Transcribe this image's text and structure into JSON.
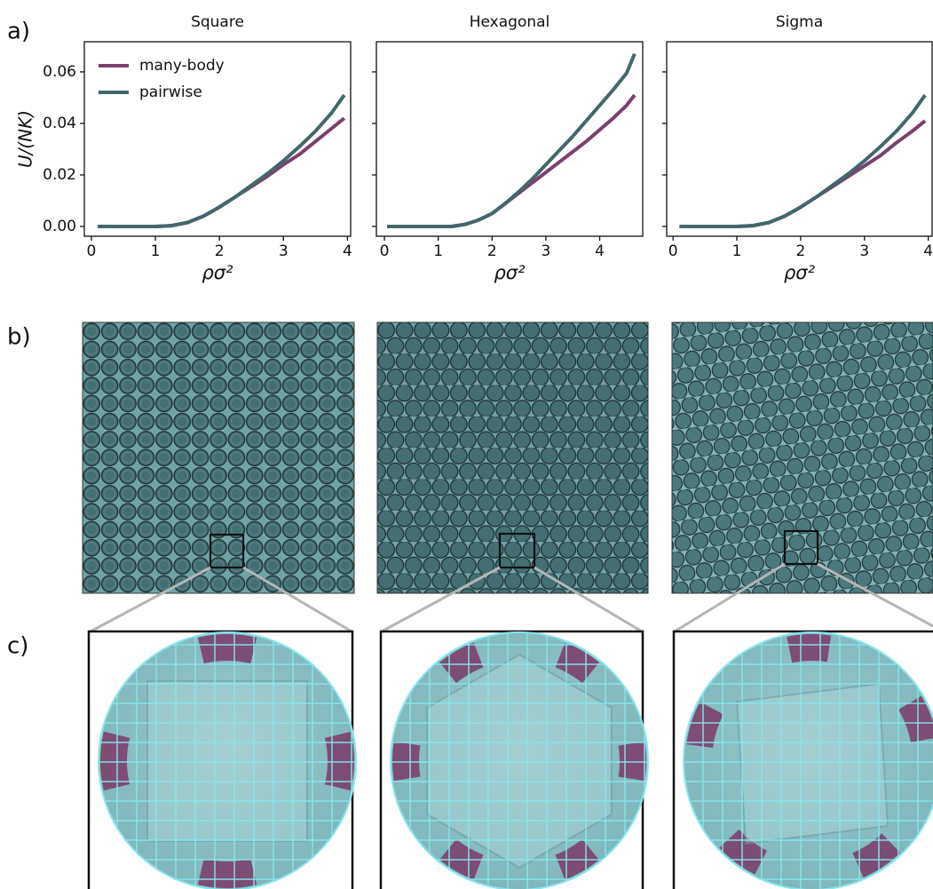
{
  "panel_labels": [
    "a)",
    "b)",
    "c)"
  ],
  "chart_data": [
    {
      "type": "line",
      "title": "Square",
      "x_label": "ρσ²",
      "y_label": "U/(NK)",
      "x": [
        0.1,
        0.5,
        1.0,
        1.25,
        1.5,
        1.75,
        2.0,
        2.25,
        2.5,
        2.75,
        3.0,
        3.25,
        3.5,
        3.75,
        3.95
      ],
      "series": [
        {
          "name": "many-body",
          "color": "#7b3f6e",
          "values": [
            0,
            0,
            0,
            0.0003,
            0.0015,
            0.004,
            0.0075,
            0.0115,
            0.0155,
            0.0195,
            0.024,
            0.028,
            0.033,
            0.038,
            0.042
          ]
        },
        {
          "name": "pairwise",
          "color": "#42676b",
          "values": [
            0,
            0,
            0,
            0.0003,
            0.0015,
            0.004,
            0.0075,
            0.0115,
            0.016,
            0.0205,
            0.0255,
            0.031,
            0.037,
            0.044,
            0.051
          ]
        }
      ],
      "xlim": [
        -0.11,
        4.05
      ],
      "xticks": [
        0,
        1,
        2,
        3,
        4
      ],
      "ylim": [
        -0.0038,
        0.0717
      ],
      "yticks": [
        {
          "value": 0,
          "label": "0.00"
        },
        {
          "value": 0.02,
          "label": "0.02"
        },
        {
          "value": 0.04,
          "label": "0.04"
        },
        {
          "value": 0.06,
          "label": "0.06"
        }
      ],
      "legend": "upper left"
    },
    {
      "type": "line",
      "title": "Hexagonal",
      "x_label": "ρσ²",
      "x": [
        0.05,
        0.5,
        1.0,
        1.25,
        1.5,
        1.75,
        2.0,
        2.25,
        2.5,
        2.75,
        3.0,
        3.25,
        3.5,
        3.75,
        4.0,
        4.25,
        4.5,
        4.65
      ],
      "series": [
        {
          "name": "many-body",
          "color": "#7b3f6e",
          "values": [
            0,
            0,
            0,
            0,
            0.0008,
            0.0025,
            0.005,
            0.009,
            0.013,
            0.017,
            0.021,
            0.025,
            0.029,
            0.033,
            0.0375,
            0.042,
            0.047,
            0.051
          ]
        },
        {
          "name": "pairwise",
          "color": "#42676b",
          "values": [
            0,
            0,
            0,
            0,
            0.0008,
            0.0025,
            0.005,
            0.009,
            0.0135,
            0.0185,
            0.024,
            0.0295,
            0.035,
            0.041,
            0.047,
            0.053,
            0.0595,
            0.067
          ]
        }
      ],
      "xlim": [
        -0.15,
        4.8
      ],
      "xticks": [
        0,
        1,
        2,
        3,
        4
      ],
      "ylim": [
        -0.0038,
        0.0717
      ],
      "yticks": [
        0,
        0.02,
        0.04,
        0.06
      ],
      "show_ytick_labels": false
    },
    {
      "type": "line",
      "title": "Sigma",
      "x_label": "ρσ²",
      "x": [
        0.1,
        0.5,
        1.0,
        1.25,
        1.5,
        1.75,
        2.0,
        2.25,
        2.5,
        2.75,
        3.0,
        3.25,
        3.5,
        3.75,
        3.95
      ],
      "series": [
        {
          "name": "many-body",
          "color": "#7b3f6e",
          "values": [
            0,
            0,
            0,
            0.0003,
            0.0015,
            0.004,
            0.0075,
            0.0115,
            0.0155,
            0.0195,
            0.0235,
            0.0275,
            0.0325,
            0.037,
            0.041
          ]
        },
        {
          "name": "pairwise",
          "color": "#42676b",
          "values": [
            0,
            0,
            0,
            0.0003,
            0.0015,
            0.004,
            0.0075,
            0.0115,
            0.016,
            0.0205,
            0.0255,
            0.031,
            0.037,
            0.044,
            0.051
          ]
        }
      ],
      "xlim": [
        -0.1,
        4.06
      ],
      "xticks": [
        0,
        1,
        2,
        3,
        4
      ],
      "ylim": [
        -0.0038,
        0.0717
      ],
      "yticks": [
        0,
        0.02,
        0.04,
        0.06
      ],
      "show_ytick_labels": false
    }
  ]
}
